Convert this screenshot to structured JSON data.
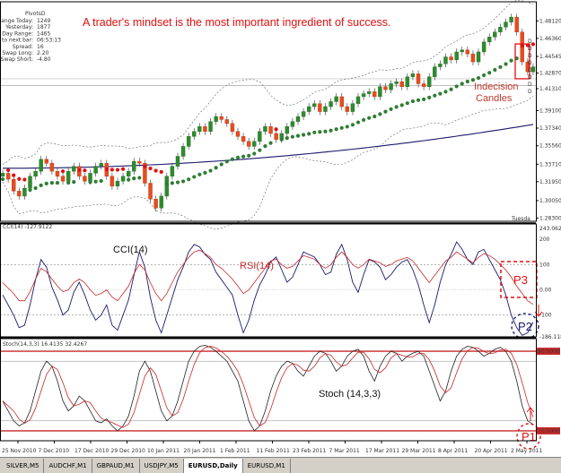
{
  "chart_data": [
    {
      "type": "candlestick",
      "symbol": "EURUSD,Daily",
      "ylim": [
        1.2797,
        1.4932
      ],
      "price_ticks": [
        "1.48120",
        "1.46360",
        "1.44545",
        "1.42870",
        "1.41310",
        "1.39100",
        "1.37340",
        "1.35560",
        "1.33710",
        "1.31950",
        "1.30050",
        "1.28300"
      ],
      "x_labels": [
        "25 Nov 2010",
        "7 Dec 2010",
        "17 Dec 2010",
        "29 Dec 2010",
        "10 Jan 2011",
        "20 Jan 2011",
        "1 Feb 2011",
        "11 Feb 2011",
        "23 Feb 2011",
        "7 Mar 2011",
        "17 Mar 2011",
        "29 Mar 2011",
        "8 Apr 2011",
        "20 Apr 2011",
        "2 May 2011"
      ],
      "annotation": "A trader's mindset is the most important ingredient of success.",
      "indecision_label": [
        "Indecision",
        "Candles"
      ],
      "tuesday_label": "Tuesda",
      "pivot_info": {
        "title": "PivotsD",
        "rows": [
          [
            "Range Today:",
            "1249"
          ],
          [
            "Yesterday:",
            "1877"
          ],
          [
            "30 Day Range:",
            "1465"
          ],
          [
            "Time to next bar:",
            "06:53:13"
          ],
          [
            "Spread:",
            "16"
          ],
          [
            "Swap Long:",
            "2.20"
          ],
          [
            "Swap Short:",
            "-4.80"
          ]
        ]
      },
      "pivot_tags": [
        "D",
        "D",
        "D",
        "D",
        "D",
        "D",
        "D",
        "D"
      ],
      "closes": [
        1.328,
        1.322,
        1.31,
        1.305,
        1.313,
        1.325,
        1.33,
        1.342,
        1.338,
        1.33,
        1.325,
        1.32,
        1.33,
        1.335,
        1.325,
        1.32,
        1.328,
        1.335,
        1.338,
        1.325,
        1.315,
        1.32,
        1.325,
        1.33,
        1.34,
        1.338,
        1.318,
        1.302,
        1.293,
        1.305,
        1.325,
        1.335,
        1.345,
        1.355,
        1.365,
        1.37,
        1.375,
        1.37,
        1.38,
        1.385,
        1.382,
        1.378,
        1.37,
        1.365,
        1.36,
        1.355,
        1.36,
        1.37,
        1.375,
        1.368,
        1.362,
        1.368,
        1.375,
        1.38,
        1.385,
        1.39,
        1.395,
        1.398,
        1.39,
        1.395,
        1.4,
        1.405,
        1.395,
        1.39,
        1.398,
        1.405,
        1.408,
        1.41,
        1.405,
        1.415,
        1.412,
        1.418,
        1.42,
        1.415,
        1.425,
        1.428,
        1.418,
        1.415,
        1.425,
        1.435,
        1.438,
        1.445,
        1.442,
        1.45,
        1.452,
        1.448,
        1.44,
        1.45,
        1.46,
        1.465,
        1.47,
        1.475,
        1.48,
        1.485,
        1.47,
        1.44,
        1.43,
        1.435
      ]
    },
    {
      "type": "line",
      "indicator_label": "CCI(14) -127.9122",
      "legend": [
        "CCI(14)",
        "RSI(14)"
      ],
      "ylim": [
        -186.118,
        243.0621
      ],
      "tick_labels": [
        "243.0621",
        "200",
        "100",
        "0.00",
        "-100",
        "-186.118"
      ],
      "markers": [
        "P3",
        "P2"
      ],
      "cci": [
        -20,
        -60,
        -100,
        -150,
        -140,
        -60,
        40,
        120,
        90,
        10,
        -40,
        -100,
        -80,
        -10,
        30,
        -20,
        -80,
        -120,
        -100,
        -60,
        -140,
        -160,
        -100,
        -40,
        60,
        150,
        90,
        -30,
        -120,
        -170,
        -100,
        -30,
        40,
        90,
        150,
        180,
        170,
        140,
        120,
        70,
        40,
        10,
        -20,
        -100,
        -170,
        -120,
        -40,
        20,
        60,
        110,
        130,
        80,
        30,
        50,
        100,
        150,
        140,
        130,
        100,
        60,
        70,
        140,
        180,
        120,
        30,
        -10,
        60,
        120,
        110,
        90,
        40,
        60,
        90,
        110,
        120,
        80,
        20,
        -60,
        -130,
        -60,
        30,
        100,
        140,
        190,
        160,
        120,
        100,
        150,
        160,
        120,
        80,
        40,
        -20,
        -100,
        -150,
        -180,
        -170,
        -128
      ],
      "rsi": [
        50,
        47,
        44,
        40,
        40,
        45,
        52,
        58,
        56,
        52,
        48,
        45,
        46,
        50,
        52,
        50,
        46,
        43,
        44,
        46,
        42,
        40,
        44,
        48,
        55,
        60,
        57,
        50,
        44,
        40,
        44,
        50,
        56,
        60,
        64,
        67,
        68,
        66,
        64,
        60,
        58,
        55,
        52,
        48,
        44,
        46,
        50,
        54,
        58,
        62,
        63,
        60,
        58,
        59,
        62,
        65,
        64,
        63,
        60,
        58,
        60,
        64,
        67,
        64,
        60,
        58,
        60,
        63,
        62,
        61,
        59,
        60,
        62,
        63,
        64,
        62,
        58,
        54,
        50,
        54,
        58,
        62,
        64,
        67,
        65,
        63,
        61,
        64,
        66,
        65,
        63,
        60,
        57,
        53,
        48,
        44,
        40,
        38
      ]
    },
    {
      "type": "line",
      "indicator_label": "Stoch(14,3,3) 16.4135 32.4267",
      "legend": [
        "Stoch (14,3,3)"
      ],
      "ylim": [
        0,
        100
      ],
      "tick_labels": [
        "90.0000",
        "10.0000"
      ],
      "levels": [
        90,
        10
      ],
      "markers": [
        "P1"
      ],
      "main": [
        40,
        30,
        20,
        15,
        18,
        30,
        50,
        70,
        80,
        75,
        60,
        40,
        30,
        35,
        45,
        40,
        30,
        20,
        18,
        22,
        15,
        10,
        15,
        25,
        45,
        70,
        80,
        70,
        50,
        30,
        20,
        25,
        40,
        60,
        80,
        90,
        95,
        96,
        94,
        90,
        85,
        80,
        70,
        60,
        40,
        20,
        10,
        15,
        30,
        50,
        65,
        75,
        80,
        78,
        70,
        65,
        75,
        85,
        90,
        88,
        80,
        70,
        75,
        85,
        90,
        92,
        85,
        70,
        60,
        75,
        85,
        90,
        88,
        80,
        85,
        88,
        90,
        85,
        70,
        55,
        40,
        50,
        70,
        85,
        92,
        95,
        94,
        90,
        85,
        88,
        92,
        94,
        90,
        80,
        60,
        35,
        20,
        16.4
      ]
    }
  ],
  "tabs": [
    "SILVER,M5",
    "AUDCHF,M1",
    "GBPAUD,M1",
    "USDJPY,M5",
    "EURUSD,Daily",
    "EURUSD,M1"
  ],
  "active_tab": "EURUSD,Daily"
}
